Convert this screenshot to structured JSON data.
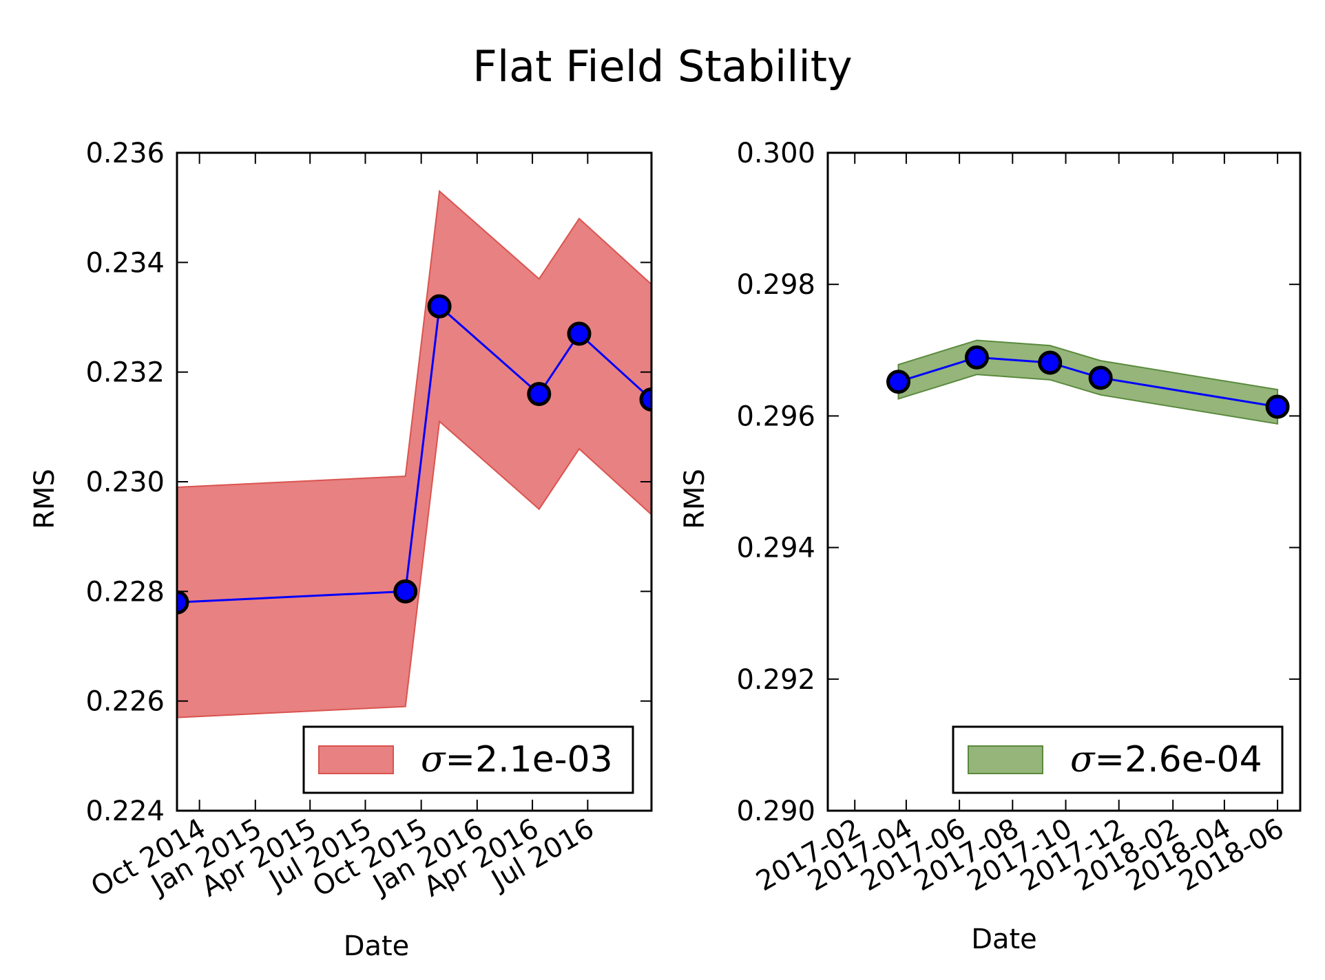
{
  "figure": {
    "title": "Flat Field Stability"
  },
  "chart_data": [
    {
      "type": "line",
      "title": "",
      "xlabel": "Date",
      "ylabel": "RMS",
      "x_ticks": [
        "Oct 2014",
        "Jan 2015",
        "Apr 2015",
        "Jul 2015",
        "Oct 2015",
        "Jan 2016",
        "Apr 2016",
        "Jul 2016"
      ],
      "tick_dates": [
        "2014-10-01",
        "2015-01-01",
        "2015-04-01",
        "2015-07-01",
        "2015-10-01",
        "2016-01-01",
        "2016-04-01",
        "2016-07-01"
      ],
      "xlim": [
        "2014-08-25",
        "2016-10-14"
      ],
      "y_ticks": [
        "0.224",
        "0.226",
        "0.228",
        "0.230",
        "0.232",
        "0.234",
        "0.236"
      ],
      "ylim": [
        0.224,
        0.236
      ],
      "grid": false,
      "legend_position": "lower-right",
      "series": [
        {
          "x": [
            "2014-08-25",
            "2015-09-05",
            "2015-10-31",
            "2016-04-12",
            "2016-06-17",
            "2016-10-14"
          ],
          "values": [
            0.2278,
            0.228,
            0.2332,
            0.2316,
            0.2327,
            0.2315
          ],
          "band_lower": [
            0.2257,
            0.2259,
            0.2311,
            0.2295,
            0.2306,
            0.2294
          ],
          "band_upper": [
            0.2299,
            0.2301,
            0.2353,
            0.2337,
            0.2348,
            0.2336
          ],
          "line_color": "#0000ff",
          "marker_color": "#0000ff"
        }
      ],
      "legend": {
        "label": "σ=2.1e-03",
        "symbol": "σ",
        "value_text": "=2.1e-03",
        "band_color": "#e57373",
        "band_opacity": 0.9,
        "band_edge": "#d9534f"
      }
    },
    {
      "type": "line",
      "title": "",
      "xlabel": "Date",
      "ylabel": "RMS",
      "x_ticks": [
        "2017-02",
        "2017-04",
        "2017-06",
        "2017-08",
        "2017-10",
        "2017-12",
        "2018-02",
        "2018-04",
        "2018-06"
      ],
      "tick_dates": [
        "2017-02-01",
        "2017-04-01",
        "2017-06-01",
        "2017-08-01",
        "2017-10-01",
        "2017-12-01",
        "2018-02-01",
        "2018-04-01",
        "2018-06-01"
      ],
      "xlim": [
        "2017-01-01",
        "2018-06-27"
      ],
      "y_ticks": [
        "0.290",
        "0.292",
        "0.294",
        "0.296",
        "0.298",
        "0.300"
      ],
      "ylim": [
        0.29,
        0.3
      ],
      "grid": false,
      "legend_position": "lower-right",
      "series": [
        {
          "x": [
            "2017-03-23",
            "2017-06-21",
            "2017-09-13",
            "2017-11-10",
            "2018-06-01"
          ],
          "values": [
            0.29652,
            0.29689,
            0.29681,
            0.29658,
            0.29614
          ],
          "band_lower": [
            0.29626,
            0.29663,
            0.29655,
            0.29632,
            0.29588
          ],
          "band_upper": [
            0.29678,
            0.29715,
            0.29707,
            0.29684,
            0.2964
          ],
          "line_color": "#0000ff",
          "marker_color": "#0000ff"
        }
      ],
      "legend": {
        "label": "σ=2.6e-04",
        "symbol": "σ",
        "value_text": "=2.6e-04",
        "band_color": "#7aa35a",
        "band_opacity": 0.8,
        "band_edge": "#5a8a3c"
      }
    }
  ]
}
